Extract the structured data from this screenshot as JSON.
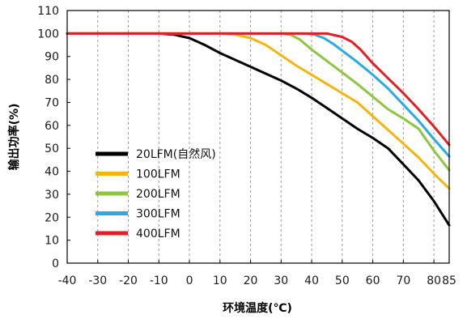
{
  "chart_data": {
    "type": "line",
    "title": "",
    "xlabel": "环境温度(℃)",
    "ylabel": "输出功率(%)",
    "xlim": [
      -40,
      85
    ],
    "ylim": [
      0,
      110
    ],
    "x_ticks": [
      -40,
      -30,
      -20,
      -10,
      0,
      10,
      20,
      30,
      40,
      50,
      60,
      70,
      80,
      85
    ],
    "y_ticks": [
      0,
      10,
      20,
      30,
      40,
      50,
      60,
      70,
      80,
      90,
      100,
      110
    ],
    "grid": "vertical-dashed",
    "legend_position": "bottom-left",
    "series": [
      {
        "name": "20LFM(自然风)",
        "color": "#000000",
        "x": [
          -40,
          -10,
          -5,
          0,
          5,
          10,
          20,
          30,
          35,
          40,
          45,
          50,
          55,
          60,
          65,
          70,
          75,
          80,
          85
        ],
        "y": [
          100,
          100,
          99.5,
          98,
          95,
          91.5,
          85.5,
          79.5,
          76,
          72,
          67.5,
          63,
          58.5,
          54.5,
          50,
          43,
          36,
          27,
          16.5
        ]
      },
      {
        "name": "100LFM",
        "color": "#F5B50F",
        "x": [
          -40,
          10,
          15,
          20,
          25,
          30,
          35,
          40,
          45,
          50,
          55,
          60,
          65,
          70,
          75,
          80,
          85
        ],
        "y": [
          100,
          100,
          99.5,
          98,
          95,
          90.5,
          86,
          82,
          78,
          74,
          70,
          64,
          58,
          52,
          46,
          39,
          32.5
        ]
      },
      {
        "name": "200LFM",
        "color": "#8DC63F",
        "x": [
          -40,
          30,
          33,
          36,
          40,
          45,
          50,
          55,
          60,
          65,
          70,
          75,
          80,
          85
        ],
        "y": [
          100,
          100,
          99.5,
          97.5,
          93,
          88,
          83,
          78,
          72.5,
          67,
          63,
          58.5,
          49,
          40.5
        ]
      },
      {
        "name": "300LFM",
        "color": "#29ABE2",
        "x": [
          -40,
          38,
          41,
          44,
          47,
          50,
          55,
          60,
          65,
          70,
          75,
          80,
          85
        ],
        "y": [
          100,
          100,
          99.5,
          98,
          95.5,
          92.5,
          87.5,
          82,
          76,
          69,
          62,
          54,
          46.5
        ]
      },
      {
        "name": "400LFM",
        "color": "#E31E24",
        "x": [
          -40,
          40,
          45,
          50,
          53,
          56,
          60,
          65,
          70,
          75,
          80,
          85
        ],
        "y": [
          100,
          100,
          100,
          98.5,
          96.5,
          93,
          87,
          80.5,
          74,
          67,
          59.5,
          51.5
        ]
      }
    ]
  }
}
